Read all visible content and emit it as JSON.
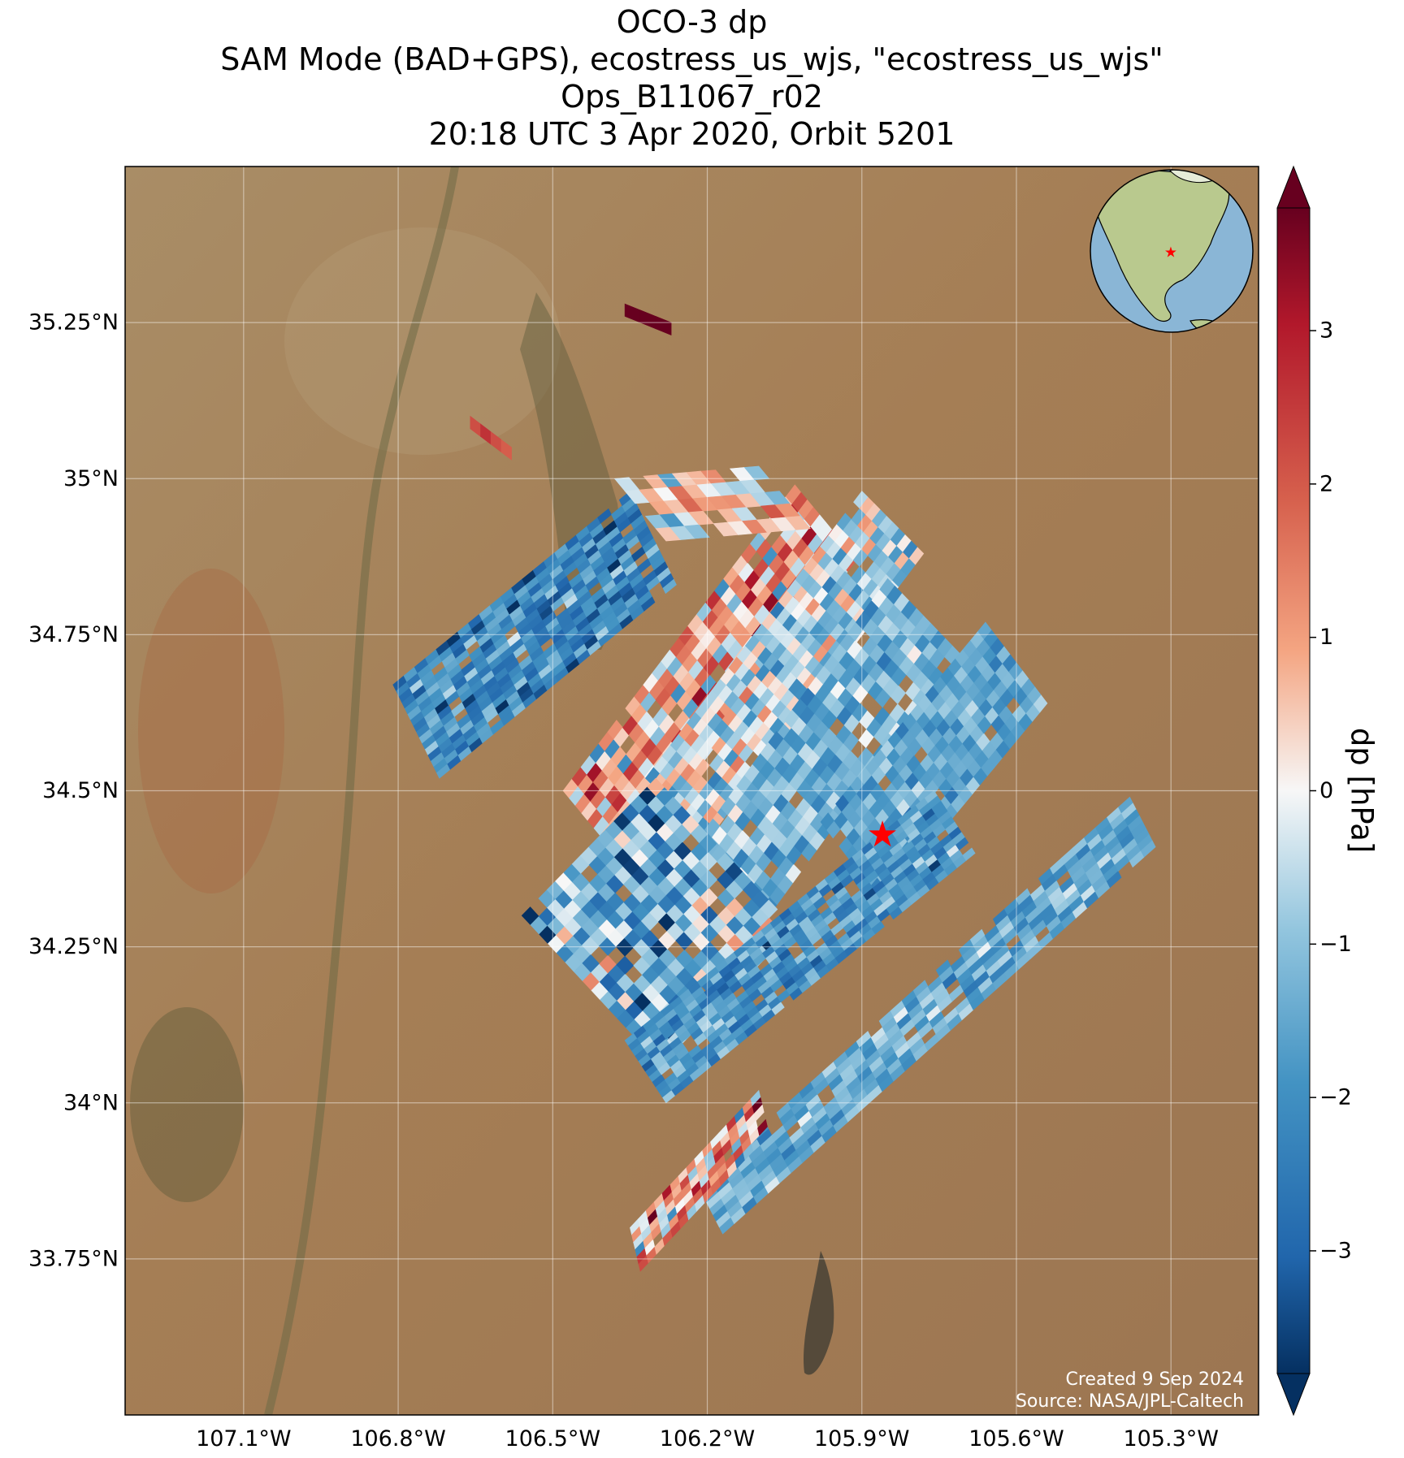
{
  "title_lines": [
    "OCO-3 dp",
    "SAM Mode (BAD+GPS), ecostress_us_wjs, \"ecostress_us_wjs\"",
    "Ops_B11067_r02",
    "20:18 UTC 3 Apr 2020, Orbit 5201"
  ],
  "credit": {
    "created": "Created 9 Sep 2024",
    "source": "Source: NASA/JPL-Caltech"
  },
  "colors": {
    "terrain": "#a98258",
    "star": "#ff0000",
    "inset_ocean": "#8ab6d6",
    "inset_land": "#b9c98e"
  },
  "chart_data": {
    "type": "heatmap",
    "xlabel": "",
    "ylabel": "",
    "x_ticks": [
      {
        "value": -107.1,
        "label": "107.1°W"
      },
      {
        "value": -106.8,
        "label": "106.8°W"
      },
      {
        "value": -106.5,
        "label": "106.5°W"
      },
      {
        "value": -106.2,
        "label": "106.2°W"
      },
      {
        "value": -105.9,
        "label": "105.9°W"
      },
      {
        "value": -105.6,
        "label": "105.6°W"
      },
      {
        "value": -105.3,
        "label": "105.3°W"
      }
    ],
    "y_ticks": [
      {
        "value": 35.25,
        "label": "35.25°N"
      },
      {
        "value": 35.0,
        "label": "35°N"
      },
      {
        "value": 34.75,
        "label": "34.75°N"
      },
      {
        "value": 34.5,
        "label": "34.5°N"
      },
      {
        "value": 34.25,
        "label": "34.25°N"
      },
      {
        "value": 34.0,
        "label": "34°N"
      },
      {
        "value": 33.75,
        "label": "33.75°N"
      }
    ],
    "xlim": [
      -107.33,
      -105.13
    ],
    "ylim": [
      33.5,
      35.5
    ],
    "grid": true,
    "target": {
      "lon": -105.86,
      "lat": 34.43,
      "marker": "star"
    },
    "colorbar": {
      "label": "dp [hPa]",
      "range": [
        -3.8,
        3.8
      ],
      "extend": "both",
      "cmap": "RdBu_r",
      "ticks": [
        {
          "value": 3,
          "label": "3"
        },
        {
          "value": 2,
          "label": "2"
        },
        {
          "value": 1,
          "label": "1"
        },
        {
          "value": 0,
          "label": "0"
        },
        {
          "value": -1,
          "label": "−1"
        },
        {
          "value": -2,
          "label": "−2"
        },
        {
          "value": -3,
          "label": "−3"
        }
      ]
    },
    "swaths": [
      {
        "name": "swath-1",
        "lon0": -106.72,
        "lat0": 34.52,
        "along_lon": 0.46,
        "along_lat": 0.31,
        "width_lon": -0.09,
        "width_lat": 0.15,
        "rows": 22,
        "cols": 16,
        "mean": -2.2,
        "spread": 1.2
      },
      {
        "name": "swath-2",
        "lon0": -106.48,
        "lat0": 34.5,
        "along_lon": 0.45,
        "along_lat": 0.49,
        "width_lon": 0.12,
        "width_lat": -0.12,
        "rows": 26,
        "cols": 10,
        "mean": 0.8,
        "spread": 2.3
      },
      {
        "name": "swath-3",
        "lon0": -106.32,
        "lat0": 34.52,
        "along_lon": 0.42,
        "along_lat": 0.46,
        "width_lon": 0.12,
        "width_lat": -0.1,
        "rows": 26,
        "cols": 10,
        "mean": -0.6,
        "spread": 1.6
      },
      {
        "name": "swath-4",
        "lon0": -106.22,
        "lat0": 34.42,
        "along_lon": 0.37,
        "along_lat": 0.42,
        "width_lon": 0.14,
        "width_lat": -0.12,
        "rows": 24,
        "cols": 10,
        "mean": -1.3,
        "spread": 1.0
      },
      {
        "name": "swath-5",
        "lon0": -105.98,
        "lat0": 34.45,
        "along_lon": 0.32,
        "along_lat": 0.32,
        "width_lon": 0.12,
        "width_lat": -0.13,
        "rows": 22,
        "cols": 10,
        "mean": -1.5,
        "spread": 0.9
      },
      {
        "name": "swath-6",
        "lon0": -106.56,
        "lat0": 34.3,
        "along_lon": 0.26,
        "along_lat": 0.22,
        "width_lon": 0.27,
        "width_lat": -0.24,
        "rows": 16,
        "cols": 16,
        "mean": -1.4,
        "spread": 2.0
      },
      {
        "name": "swath-7",
        "lon0": -106.36,
        "lat0": 34.1,
        "along_lon": 0.6,
        "along_lat": 0.4,
        "width_lon": 0.08,
        "width_lat": -0.1,
        "rows": 34,
        "cols": 12,
        "mean": -1.9,
        "spread": 1.1
      },
      {
        "name": "swath-8",
        "lon0": -106.22,
        "lat0": 33.87,
        "along_lon": 0.84,
        "along_lat": 0.62,
        "width_lon": 0.05,
        "width_lat": -0.08,
        "rows": 38,
        "cols": 8,
        "mean": -1.4,
        "spread": 0.9
      },
      {
        "name": "swath-9",
        "lon0": -106.35,
        "lat0": 33.8,
        "along_lon": 0.25,
        "along_lat": 0.22,
        "width_lon": 0.02,
        "width_lat": -0.07,
        "rows": 16,
        "cols": 6,
        "mean": 0.9,
        "spread": 2.4
      },
      {
        "name": "swath-10",
        "lon0": -106.38,
        "lat0": 35.0,
        "along_lon": 0.28,
        "along_lat": 0.02,
        "width_lon": 0.1,
        "width_lat": -0.1,
        "rows": 10,
        "cols": 5,
        "mean": 0.2,
        "spread": 1.5
      },
      {
        "name": "swath-11",
        "lon0": -106.66,
        "lat0": 35.1,
        "along_lon": 0.08,
        "along_lat": -0.05,
        "width_lon": 0.0,
        "width_lat": -0.02,
        "rows": 4,
        "cols": 1,
        "mean": 2.0,
        "spread": 0.6
      },
      {
        "name": "swath-12",
        "lon0": -106.36,
        "lat0": 35.28,
        "along_lon": 0.09,
        "along_lat": -0.03,
        "width_lon": 0.0,
        "width_lat": -0.02,
        "rows": 3,
        "cols": 1,
        "mean": 3.8,
        "spread": 0.1
      }
    ]
  }
}
